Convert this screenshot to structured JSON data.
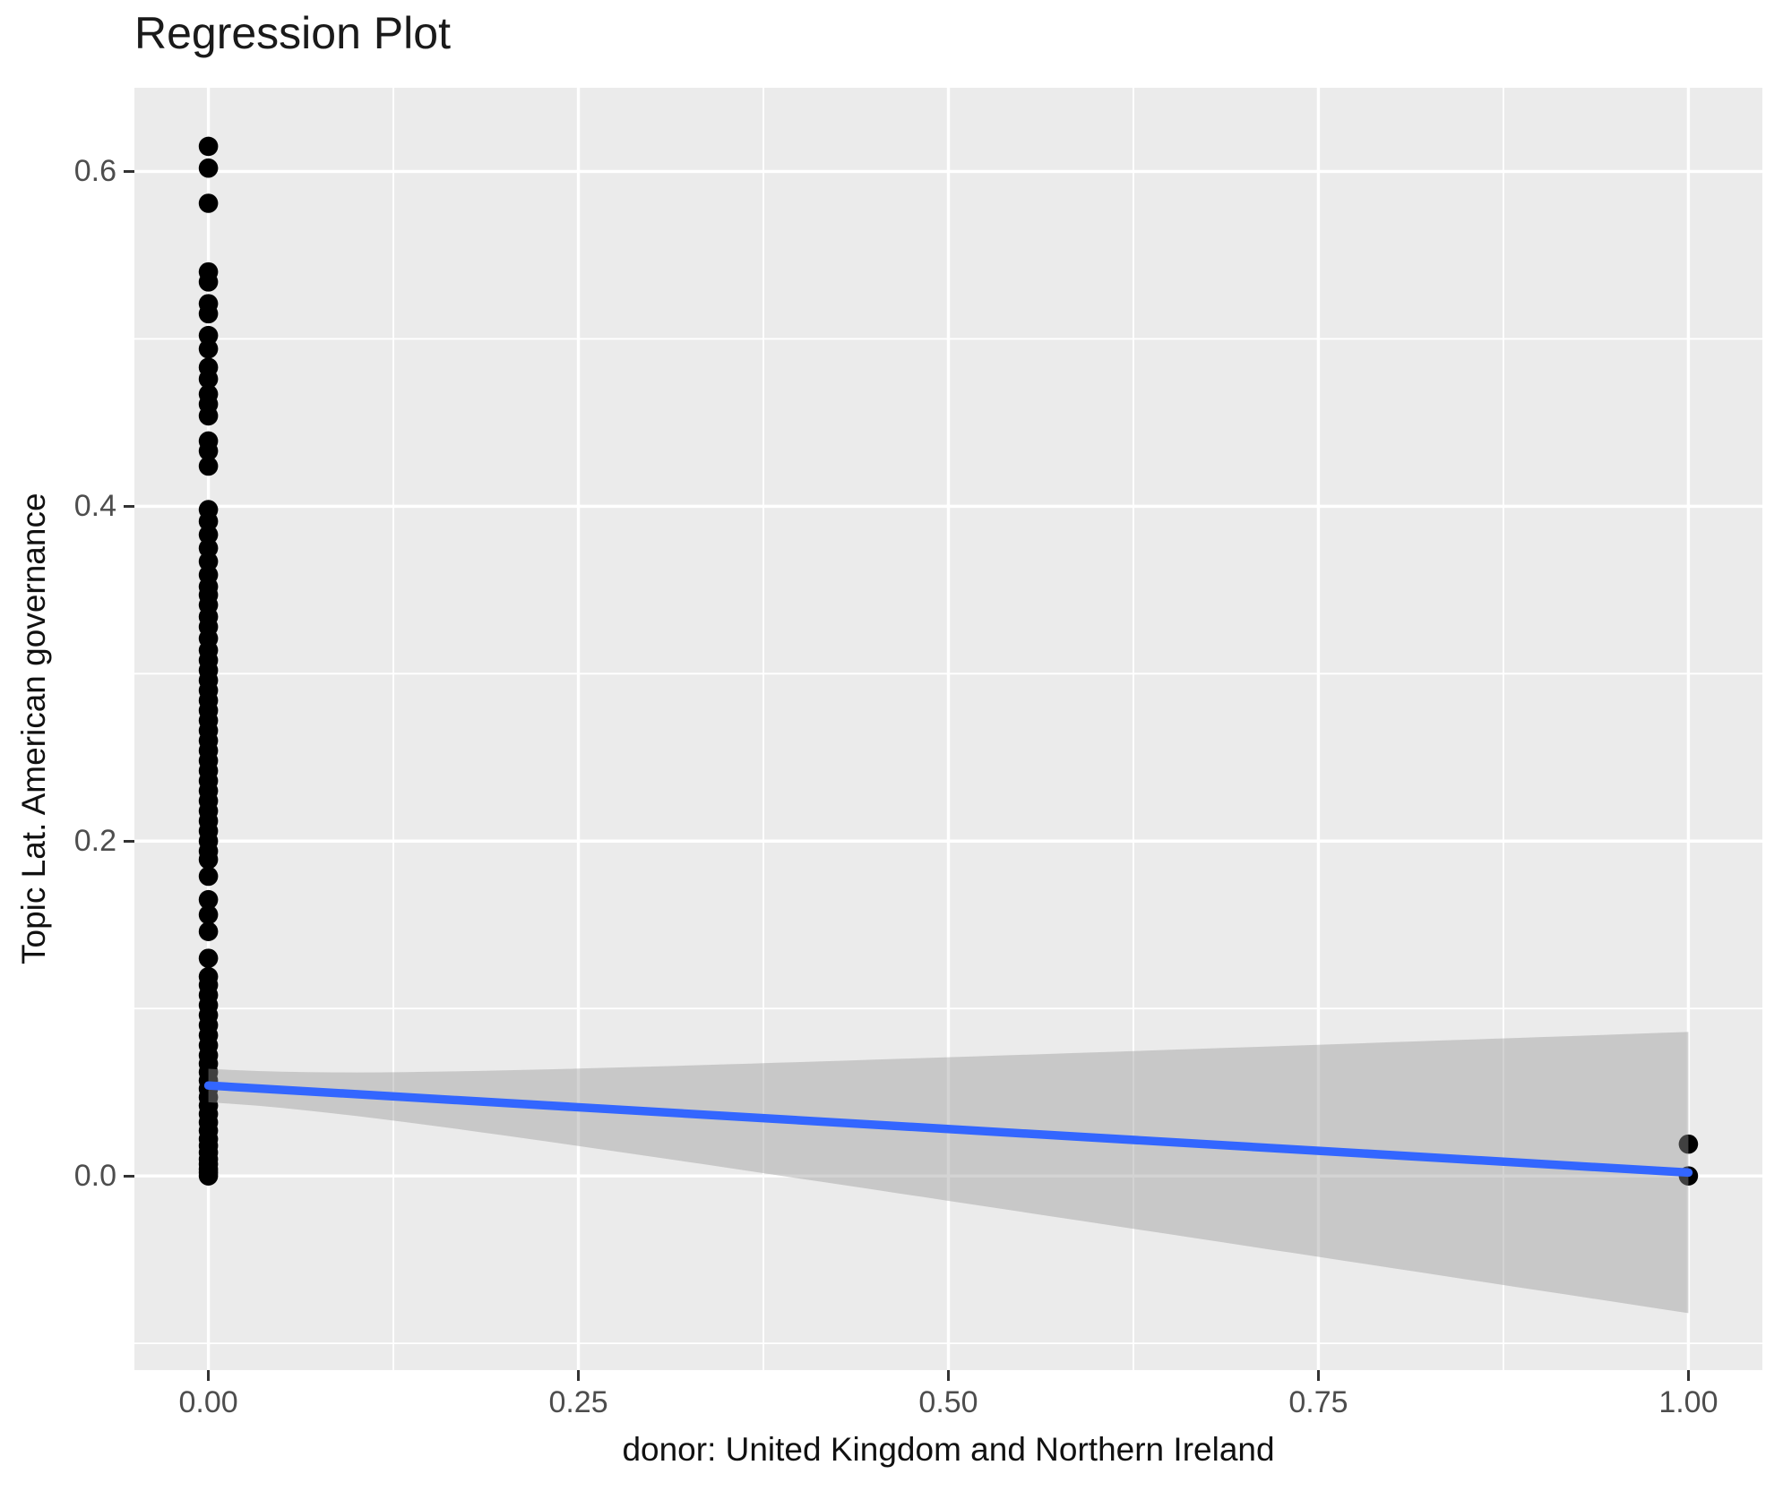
{
  "title": "Regression Plot",
  "chart_data": {
    "type": "scatter",
    "title": "Regression Plot",
    "xlabel": "donor: United Kingdom and Northern Ireland",
    "ylabel": "Topic Lat. American governance",
    "legend": "none",
    "grid": true,
    "panel_background": "#EBEBEB",
    "grid_color": "#FFFFFF",
    "xlim": [
      -0.05,
      1.05
    ],
    "ylim": [
      -0.116,
      0.65
    ],
    "x_ticks": {
      "values": [
        0,
        0.25,
        0.5,
        0.75,
        1
      ],
      "labels": [
        "0.00",
        "0.25",
        "0.50",
        "0.75",
        "1.00"
      ]
    },
    "y_ticks": {
      "values": [
        0,
        0.2,
        0.4,
        0.6
      ],
      "labels": [
        "0.0",
        "0.2",
        "0.4",
        "0.6"
      ]
    },
    "x_minor": [
      0.125,
      0.375,
      0.625,
      0.875
    ],
    "y_minor": [
      -0.1,
      0.1,
      0.3,
      0.5
    ],
    "points": [
      {
        "x": 0,
        "y": [
          0.615,
          0.602,
          0.581,
          0.54,
          0.534,
          0.521,
          0.515,
          0.502,
          0.494,
          0.483,
          0.476,
          0.467,
          0.461,
          0.454,
          0.439,
          0.433,
          0.424,
          0.398,
          0.391,
          0.383,
          0.375,
          0.367,
          0.359,
          0.352,
          0.347,
          0.341,
          0.334,
          0.328,
          0.321,
          0.314,
          0.308,
          0.302,
          0.296,
          0.29,
          0.284,
          0.278,
          0.272,
          0.266,
          0.26,
          0.254,
          0.248,
          0.242,
          0.236,
          0.23,
          0.224,
          0.218,
          0.212,
          0.206,
          0.2,
          0.194,
          0.189,
          0.179,
          0.165,
          0.156,
          0.146,
          0.13,
          0.119,
          0.114,
          0.108,
          0.102,
          0.096,
          0.09,
          0.084,
          0.078,
          0.072,
          0.067,
          0.062,
          0.057,
          0.052,
          0.047,
          0.042,
          0.037,
          0.032,
          0.027,
          0.022,
          0.018,
          0.014,
          0.01,
          0.007,
          0.004,
          0.002,
          0.0
        ]
      },
      {
        "x": 1,
        "y": [
          0.019,
          0.0
        ]
      }
    ],
    "regression_line": {
      "x": [
        0,
        1
      ],
      "y": [
        0.054,
        0.002
      ]
    },
    "ci_ribbon": {
      "x_range": [
        0,
        1
      ],
      "center": [
        0.054,
        0.002
      ],
      "half_width": [
        0.01,
        0.084
      ]
    },
    "colors": {
      "point": "#000000",
      "line": "#3366FF",
      "ribbon": "rgba(153,153,153,0.42)",
      "tick_text": "#4d4d4d",
      "tick_mark": "#333333"
    }
  }
}
